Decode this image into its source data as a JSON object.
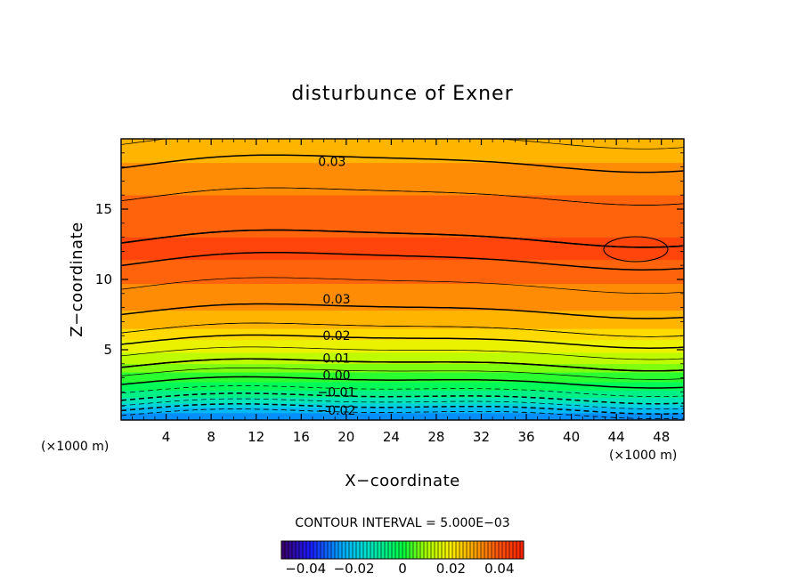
{
  "chart_data": {
    "type": "heatmap",
    "title": "disturbunce of Exner",
    "xlabel": "X−coordinate",
    "ylabel": "Z−coordinate",
    "x_unit_left": "(×1000 m)",
    "x_unit_right": "(×1000 m)",
    "xlim": [
      0,
      50
    ],
    "ylim": [
      0,
      20
    ],
    "x_ticks": [
      "4",
      "8",
      "12",
      "16",
      "20",
      "24",
      "28",
      "32",
      "36",
      "40",
      "44",
      "48"
    ],
    "x_tick_values": [
      4,
      8,
      12,
      16,
      20,
      24,
      28,
      32,
      36,
      40,
      44,
      48
    ],
    "y_ticks": [
      "5",
      "10",
      "15"
    ],
    "y_tick_values": [
      5,
      10,
      15
    ],
    "contour_interval_text": "CONTOUR INTERVAL = 5.000E−03",
    "contour_interval": 0.005,
    "value_range": [
      -0.05,
      0.05
    ],
    "contour_labels": [
      {
        "text": "0.03",
        "x": 17,
        "z": 18.4
      },
      {
        "text": "0.03",
        "x": 17.4,
        "z": 8.6
      },
      {
        "text": "0.02",
        "x": 17.4,
        "z": 6.0
      },
      {
        "text": "0.01",
        "x": 17.4,
        "z": 4.4
      },
      {
        "text": "0.00",
        "x": 17.4,
        "z": 3.2
      },
      {
        "text": "−0.01",
        "x": 17.4,
        "z": 2.0
      },
      {
        "text": "−0.02",
        "x": 17.4,
        "z": 0.7
      }
    ],
    "profile": {
      "z": [
        0,
        0.5,
        1,
        1.5,
        2,
        2.5,
        3,
        3.5,
        4,
        4.5,
        5,
        5.5,
        6,
        6.5,
        7,
        7.5,
        8,
        8.5,
        9,
        10,
        11,
        12,
        13,
        14,
        15,
        16,
        17,
        18,
        19,
        20
      ],
      "value": [
        -0.03,
        -0.025,
        -0.018,
        -0.011,
        -0.006,
        -0.002,
        0.002,
        0.006,
        0.01,
        0.013,
        0.016,
        0.019,
        0.022,
        0.025,
        0.027,
        0.029,
        0.0305,
        0.0318,
        0.033,
        0.036,
        0.039,
        0.0415,
        0.04,
        0.038,
        0.0365,
        0.035,
        0.0335,
        0.031,
        0.028,
        0.025
      ]
    },
    "colorbar": {
      "ticks": [
        "−0.04",
        "−0.02",
        "0",
        "0.02",
        "0.04"
      ],
      "tick_values": [
        -0.04,
        -0.02,
        0,
        0.02,
        0.04
      ],
      "range": [
        -0.05,
        0.05
      ]
    }
  }
}
